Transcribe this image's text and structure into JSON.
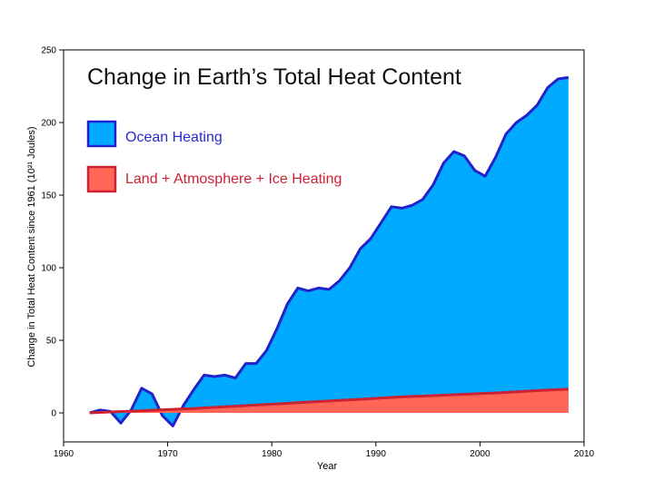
{
  "chart_data": {
    "type": "area",
    "title": "Change in Earth’s Total Heat Content",
    "xlabel": "Year",
    "ylabel": "Change in Total Heat Content since 1961 (10²¹ Joules)",
    "xlim": [
      1960,
      2010
    ],
    "ylim": [
      -20,
      250
    ],
    "x_ticks": [
      "1960",
      "1970",
      "1980",
      "1990",
      "2000",
      "2010"
    ],
    "y_ticks": [
      "0",
      "50",
      "100",
      "150",
      "200",
      "250"
    ],
    "legend_position": "top-left",
    "x": [
      1962.5,
      1963.5,
      1964.5,
      1965.5,
      1966.5,
      1967.5,
      1968.5,
      1969.5,
      1970.5,
      1971.5,
      1972.5,
      1973.5,
      1974.5,
      1975.5,
      1976.5,
      1977.5,
      1978.5,
      1979.5,
      1980.5,
      1981.5,
      1982.5,
      1983.5,
      1984.5,
      1985.5,
      1986.5,
      1987.5,
      1988.5,
      1989.5,
      1990.5,
      1991.5,
      1992.5,
      1993.5,
      1994.5,
      1995.5,
      1996.5,
      1997.5,
      1998.5,
      1999.5,
      2000.5,
      2001.5,
      2002.5,
      2003.5,
      2004.5,
      2005.5,
      2006.5,
      2007.5,
      2008.5
    ],
    "series": [
      {
        "name": "Ocean Heating",
        "color": "#00aaff",
        "edge_color": "#2222cc",
        "values": [
          0,
          2,
          1,
          -7,
          2,
          17,
          13,
          -2,
          -9,
          5,
          16,
          26,
          25,
          26,
          24,
          34,
          34,
          43,
          58,
          75,
          86,
          84,
          86,
          85,
          91,
          100,
          113,
          120,
          131,
          142,
          141,
          143,
          147,
          157,
          172,
          180,
          177,
          167,
          163,
          176,
          192,
          200,
          205,
          212,
          224,
          230,
          231
        ]
      },
      {
        "name": "Land + Atmosphere + Ice Heating",
        "color": "#ff6655",
        "edge_color": "#cc2233",
        "values": [
          0,
          0.3,
          0.6,
          0.9,
          1.2,
          1.5,
          1.8,
          2.1,
          2.4,
          2.7,
          3.0,
          3.4,
          3.8,
          4.2,
          4.6,
          5.0,
          5.4,
          5.8,
          6.2,
          6.6,
          7.0,
          7.4,
          7.8,
          8.2,
          8.6,
          9.0,
          9.4,
          9.8,
          10.2,
          10.6,
          11.0,
          11.3,
          11.6,
          11.9,
          12.2,
          12.5,
          12.8,
          13.1,
          13.4,
          13.7,
          14.1,
          14.5,
          14.9,
          15.3,
          15.7,
          16.0,
          16.3
        ]
      }
    ]
  }
}
